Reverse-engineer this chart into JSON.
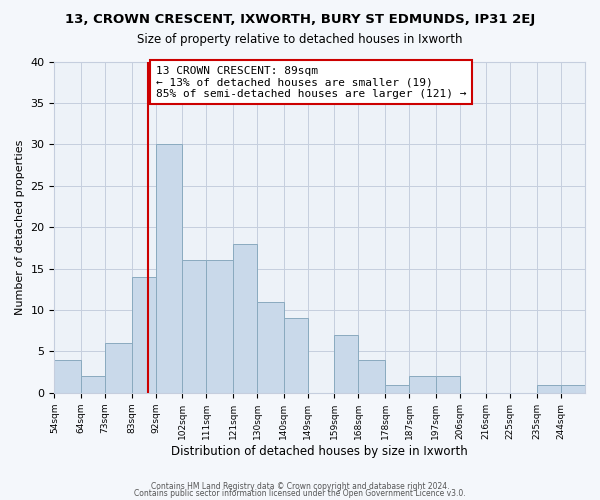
{
  "title": "13, CROWN CRESCENT, IXWORTH, BURY ST EDMUNDS, IP31 2EJ",
  "subtitle": "Size of property relative to detached houses in Ixworth",
  "xlabel": "Distribution of detached houses by size in Ixworth",
  "ylabel": "Number of detached properties",
  "bin_labels": [
    "54sqm",
    "64sqm",
    "73sqm",
    "83sqm",
    "92sqm",
    "102sqm",
    "111sqm",
    "121sqm",
    "130sqm",
    "140sqm",
    "149sqm",
    "159sqm",
    "168sqm",
    "178sqm",
    "187sqm",
    "197sqm",
    "206sqm",
    "216sqm",
    "225sqm",
    "235sqm",
    "244sqm"
  ],
  "bin_edges": [
    54,
    64,
    73,
    83,
    92,
    102,
    111,
    121,
    130,
    140,
    149,
    159,
    168,
    178,
    187,
    197,
    206,
    216,
    225,
    235,
    244
  ],
  "bar_heights": [
    4,
    2,
    6,
    14,
    30,
    16,
    16,
    18,
    11,
    9,
    0,
    7,
    4,
    1,
    2,
    2,
    0,
    0,
    0,
    1,
    1
  ],
  "bar_color": "#c9d9ea",
  "bar_edge_color": "#8aaabf",
  "vline_x": 89,
  "vline_color": "#cc0000",
  "annotation_text": "13 CROWN CRESCENT: 89sqm\n← 13% of detached houses are smaller (19)\n85% of semi-detached houses are larger (121) →",
  "annotation_box_color": "#ffffff",
  "annotation_box_edge": "#cc0000",
  "ylim": [
    0,
    40
  ],
  "yticks": [
    0,
    5,
    10,
    15,
    20,
    25,
    30,
    35,
    40
  ],
  "footer_line1": "Contains HM Land Registry data © Crown copyright and database right 2024.",
  "footer_line2": "Contains public sector information licensed under the Open Government Licence v3.0.",
  "bg_color": "#f4f7fb",
  "plot_bg_color": "#edf2f8",
  "grid_color": "#c5cede"
}
